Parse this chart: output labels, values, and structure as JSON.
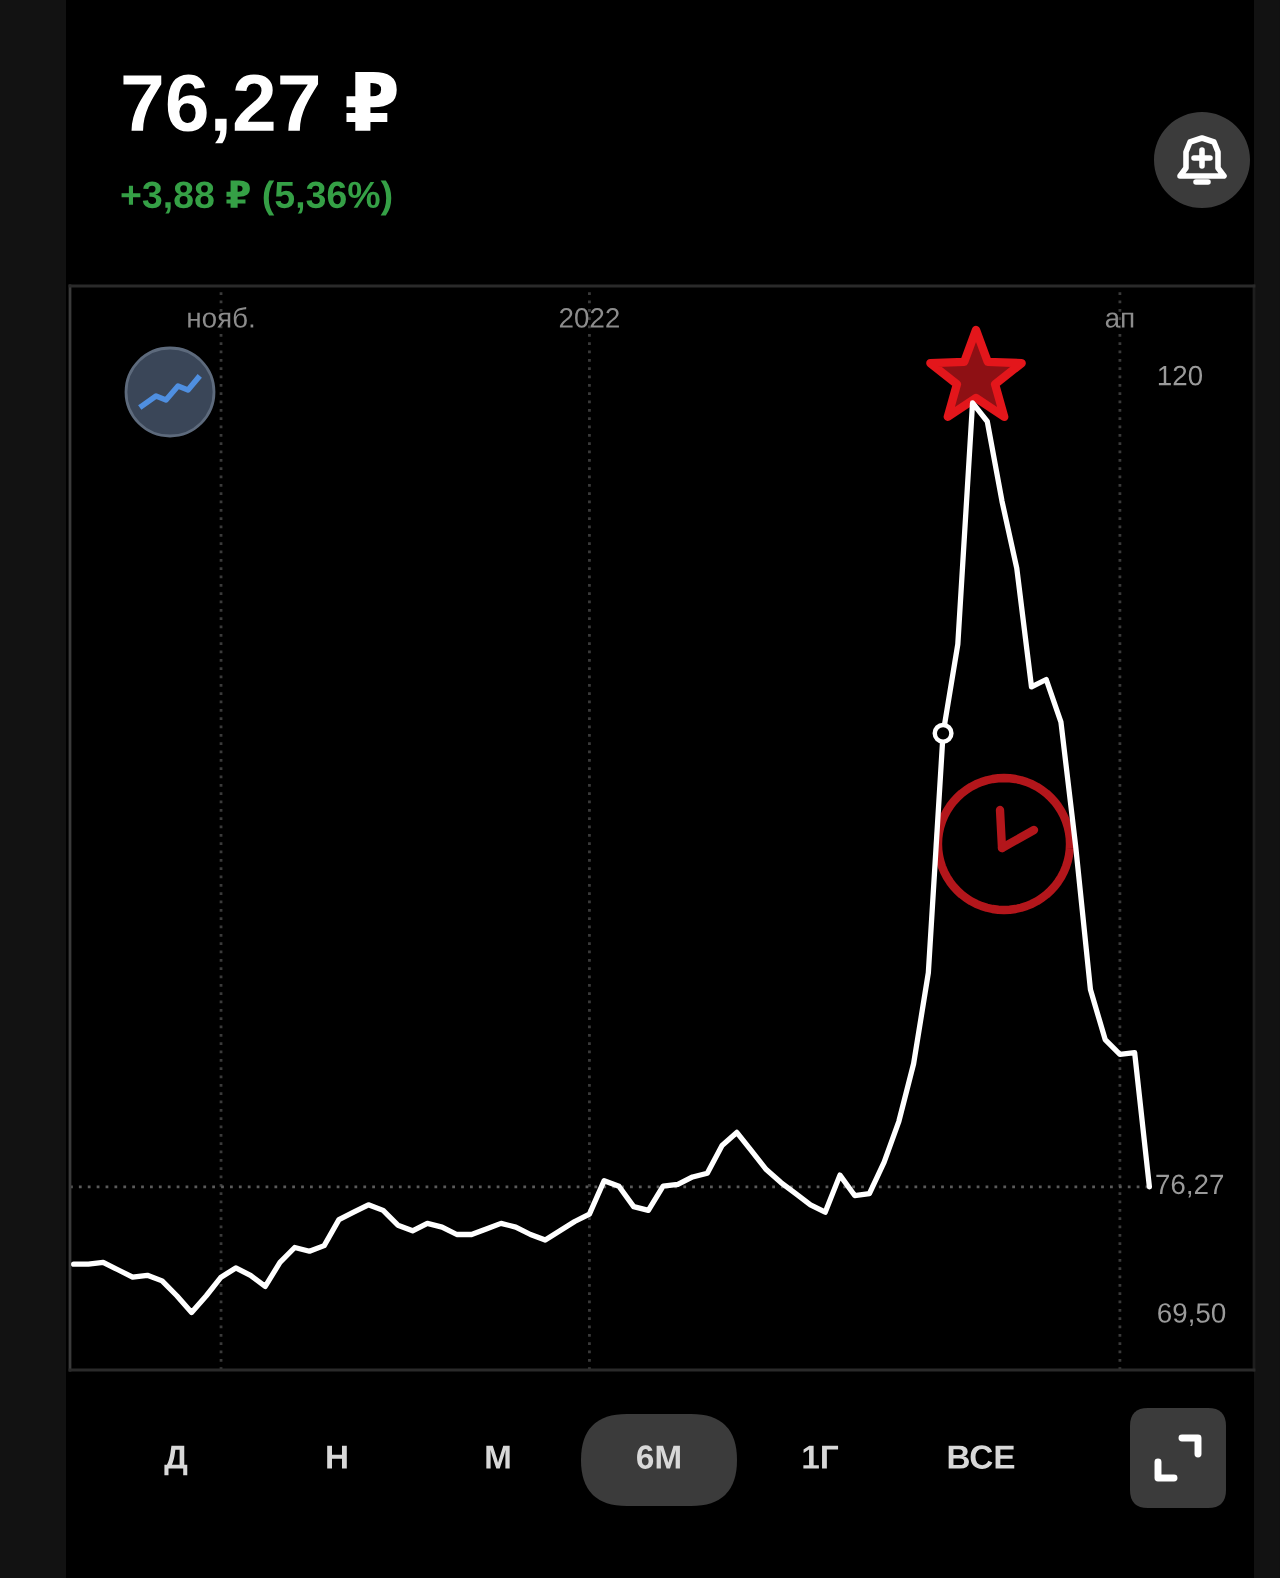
{
  "chart_data": {
    "type": "line",
    "title": "76,27 ₽",
    "subtitle": "+3,88 ₽ (5,36%)",
    "annotations": [
      "Д",
      "Н",
      "М",
      "6М",
      "1Г",
      "ВСЕ"
    ],
    "categories": [
      null,
      null,
      null,
      null,
      null,
      null,
      null,
      null,
      null,
      null,
      "нояб.",
      null,
      null,
      null,
      null,
      null,
      null,
      null,
      null,
      null,
      null,
      null,
      null,
      null,
      null,
      null,
      null,
      null,
      null,
      null,
      null,
      null,
      null,
      null,
      null,
      "2022",
      null,
      null,
      null,
      null,
      null,
      null,
      null,
      null,
      null,
      null,
      null,
      null,
      null,
      null,
      null,
      null,
      null,
      null,
      null,
      null,
      null,
      null,
      null,
      null,
      null,
      null,
      null,
      null,
      null,
      null,
      null,
      null,
      null,
      null,
      null,
      "ап",
      null,
      null
    ],
    "series": [
      {
        "color": "#ffffff",
        "values": [
          72.1,
          72.1,
          72.2,
          71.8,
          71.4,
          71.5,
          71.2,
          70.4,
          69.5,
          70.4,
          71.4,
          71.9,
          71.5,
          70.9,
          72.2,
          73.0,
          72.8,
          73.1,
          74.5,
          74.9,
          75.3,
          75.0,
          74.2,
          73.9,
          74.3,
          74.1,
          73.7,
          73.7,
          74.0,
          74.3,
          74.1,
          73.7,
          73.4,
          73.9,
          74.4,
          74.8,
          76.6,
          76.3,
          75.2,
          75.0,
          76.3,
          76.4,
          76.8,
          77.0,
          78.5,
          79.2,
          78.2,
          77.2,
          76.5,
          75.9,
          75.3,
          74.9,
          76.9,
          75.8,
          75.9,
          77.6,
          79.8,
          82.9,
          87.8,
          100.7,
          105.5,
          118.5,
          117.5,
          113.2,
          109.6,
          103.2,
          103.6,
          101.3,
          94.6,
          86.9,
          84.2,
          83.4,
          83.5,
          76.27
        ]
      },
      {
        "type": "scatter",
        "color": "#ffffff",
        "marker": "circle",
        "values": [
          null,
          null,
          null,
          null,
          null,
          null,
          null,
          null,
          null,
          null,
          null,
          null,
          null,
          null,
          null,
          null,
          null,
          null,
          null,
          null,
          null,
          null,
          null,
          null,
          null,
          null,
          null,
          null,
          null,
          null,
          null,
          null,
          null,
          null,
          null,
          null,
          null,
          null,
          null,
          null,
          null,
          null,
          null,
          null,
          null,
          null,
          null,
          null,
          null,
          null,
          null,
          null,
          null,
          null,
          null,
          null,
          null,
          null,
          null,
          100.7,
          null,
          null,
          null,
          null,
          null,
          null,
          null,
          null,
          null,
          null,
          null,
          null,
          null,
          null
        ]
      }
    ],
    "ylim": [
      66.4,
      124.8
    ],
    "yticks": [
      {
        "value": 69.5,
        "label": "69,50"
      },
      120
    ],
    "grid": "x",
    "ref_lines": [
      {
        "axis": "y",
        "value": 76.27,
        "label": "76,27",
        "color": "#5a5a5a",
        "line_style": "dotted"
      }
    ]
  }
}
